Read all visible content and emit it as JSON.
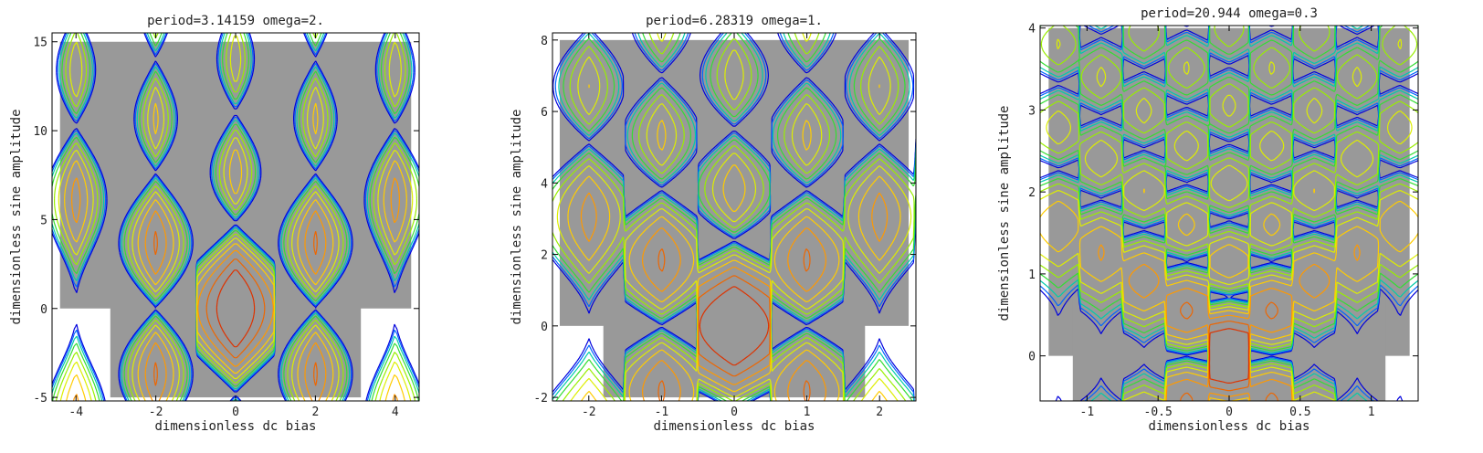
{
  "chart_data": [
    {
      "type": "contour",
      "title": "period=3.14159 omega=2.",
      "xlabel": "dimensionless dc bias",
      "ylabel": "dimensionless sine amplitude",
      "xlim": [
        -4.6,
        4.6
      ],
      "ylim": [
        -5.2,
        15.5
      ],
      "xticks": [
        "-4",
        "-2",
        "0",
        "2",
        "4"
      ],
      "yticks": [
        "-5",
        "0",
        "5",
        "10",
        "15"
      ],
      "omega": 2,
      "regions": [
        {
          "x": [
            -4.4,
            4.4
          ],
          "y": [
            0,
            15
          ]
        },
        {
          "x": [
            -3.14,
            3.14
          ],
          "y": [
            -5,
            5
          ]
        }
      ]
    },
    {
      "type": "contour",
      "title": "period=6.28319 omega=1.",
      "xlabel": "dimensionless dc bias",
      "ylabel": "dimensionless sine amplitude",
      "xlim": [
        -2.5,
        2.5
      ],
      "ylim": [
        -2.1,
        8.2
      ],
      "xticks": [
        "-2",
        "-1",
        "0",
        "1",
        "2"
      ],
      "yticks": [
        "-2",
        "0",
        "2",
        "4",
        "6",
        "8"
      ],
      "omega": 1,
      "regions": [
        {
          "x": [
            -2.4,
            2.4
          ],
          "y": [
            0,
            8
          ]
        },
        {
          "x": [
            -1.8,
            1.8
          ],
          "y": [
            -2,
            2
          ]
        }
      ]
    },
    {
      "type": "contour",
      "title": "period=20.944 omega=0.3",
      "xlabel": "dimensionless dc bias",
      "ylabel": "dimensionless sine amplitude",
      "xlim": [
        -1.33,
        1.33
      ],
      "ylim": [
        -0.55,
        4.03
      ],
      "xticks": [
        "-1",
        "-0.5",
        "0",
        "0.5",
        "1"
      ],
      "yticks": [
        "0",
        "1",
        "2",
        "3",
        "4"
      ],
      "omega": 0.3,
      "regions": [
        {
          "x": [
            -1.27,
            1.27
          ],
          "y": [
            0,
            4
          ]
        },
        {
          "x": [
            -1.1,
            1.1
          ],
          "y": [
            -0.55,
            1.3
          ]
        }
      ]
    }
  ],
  "colors": {
    "region_fill": "#999999",
    "levels": [
      "#0000dd",
      "#0066ff",
      "#00ccaa",
      "#33dd33",
      "#99ee00",
      "#ddee00",
      "#ffcc00",
      "#ff9900",
      "#ee6600",
      "#dd3300"
    ]
  }
}
